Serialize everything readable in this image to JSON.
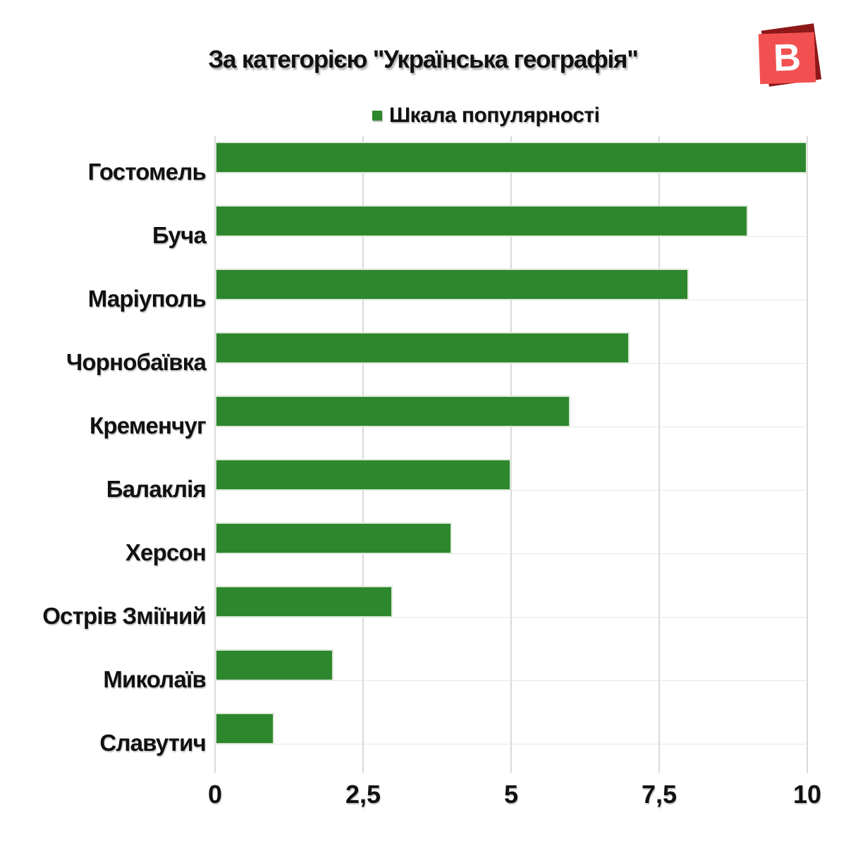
{
  "title": "За категорією \"Українська географія\"",
  "legend": {
    "label": "Шкала популярності",
    "swatch_color": "#2d872d"
  },
  "logo": {
    "letter": "B",
    "front_color": "#f25050",
    "back_color": "#8e1818"
  },
  "chart_data": {
    "type": "bar",
    "orientation": "horizontal",
    "title": "За категорією \"Українська географія\"",
    "series_name": "Шкала популярності",
    "categories": [
      "Гостомель",
      "Буча",
      "Маріуполь",
      "Чорнобаївка",
      "Кременчуг",
      "Балаклія",
      "Херсон",
      "Острів Зміїний",
      "Миколаїв",
      "Славутич"
    ],
    "values": [
      10,
      9,
      8,
      7,
      6,
      5,
      4,
      3,
      2,
      1
    ],
    "bar_color": "#2d872d",
    "xlim": [
      0,
      10
    ],
    "xticks": [
      {
        "value": 0,
        "label": "0"
      },
      {
        "value": 2.5,
        "label": "2,5"
      },
      {
        "value": 5,
        "label": "5"
      },
      {
        "value": 7.5,
        "label": "7,5"
      },
      {
        "value": 10,
        "label": "10"
      }
    ],
    "grid": "vertical-light",
    "legend_position": "top-center"
  }
}
